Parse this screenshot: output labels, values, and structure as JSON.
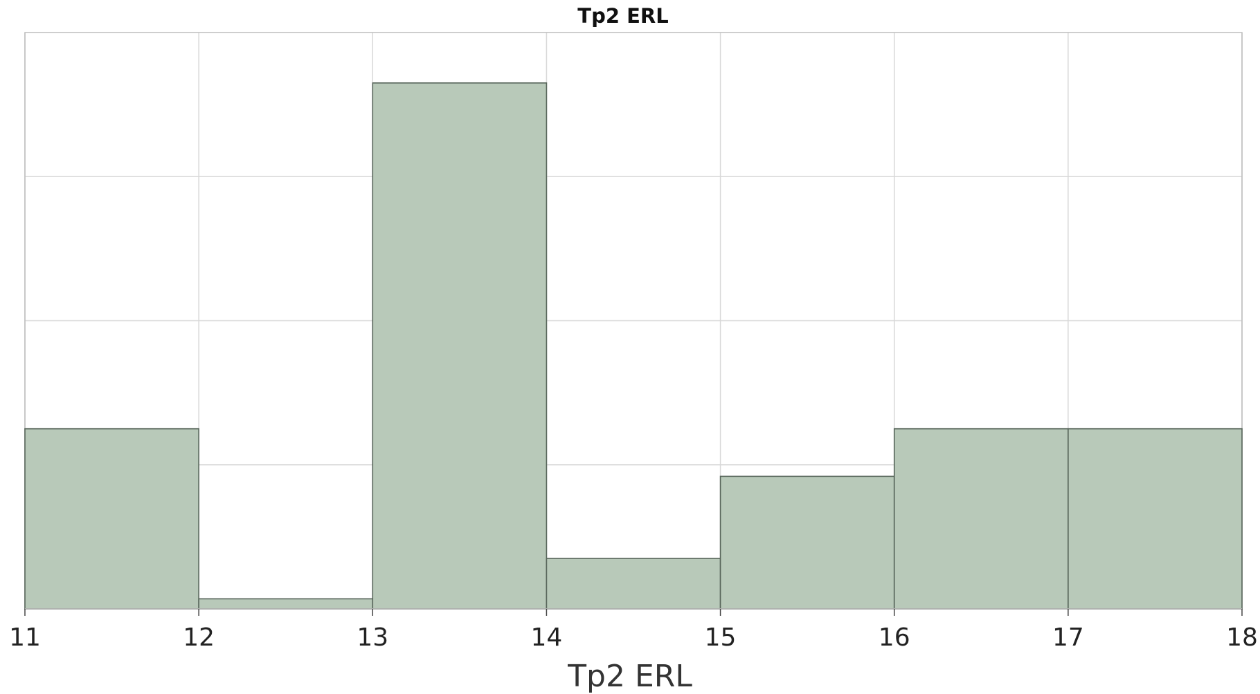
{
  "chart_data": {
    "type": "bar",
    "title": "Tp2 ERL",
    "xlabel": "Tp2 ERL",
    "ylabel": "",
    "bins": [
      {
        "start": 11,
        "end": 12,
        "value": 1.25
      },
      {
        "start": 12,
        "end": 13,
        "value": 0.07
      },
      {
        "start": 13,
        "end": 14,
        "value": 3.65
      },
      {
        "start": 14,
        "end": 15,
        "value": 0.35
      },
      {
        "start": 15,
        "end": 16,
        "value": 0.92
      },
      {
        "start": 16,
        "end": 17,
        "value": 1.25
      },
      {
        "start": 17,
        "end": 18,
        "value": 1.25
      }
    ],
    "xticks": [
      11,
      12,
      13,
      14,
      15,
      16,
      17,
      18
    ],
    "xlim": [
      11,
      18
    ],
    "ylim": [
      0,
      4
    ],
    "ygrid_values": [
      1,
      2,
      3
    ],
    "y_tick_labels_visible": false,
    "grid": true,
    "colors": {
      "bar_fill": "#b8c9b9",
      "bar_stroke": "#57655a",
      "grid": "#d8d8d8",
      "frame": "#bdbdbd"
    }
  }
}
